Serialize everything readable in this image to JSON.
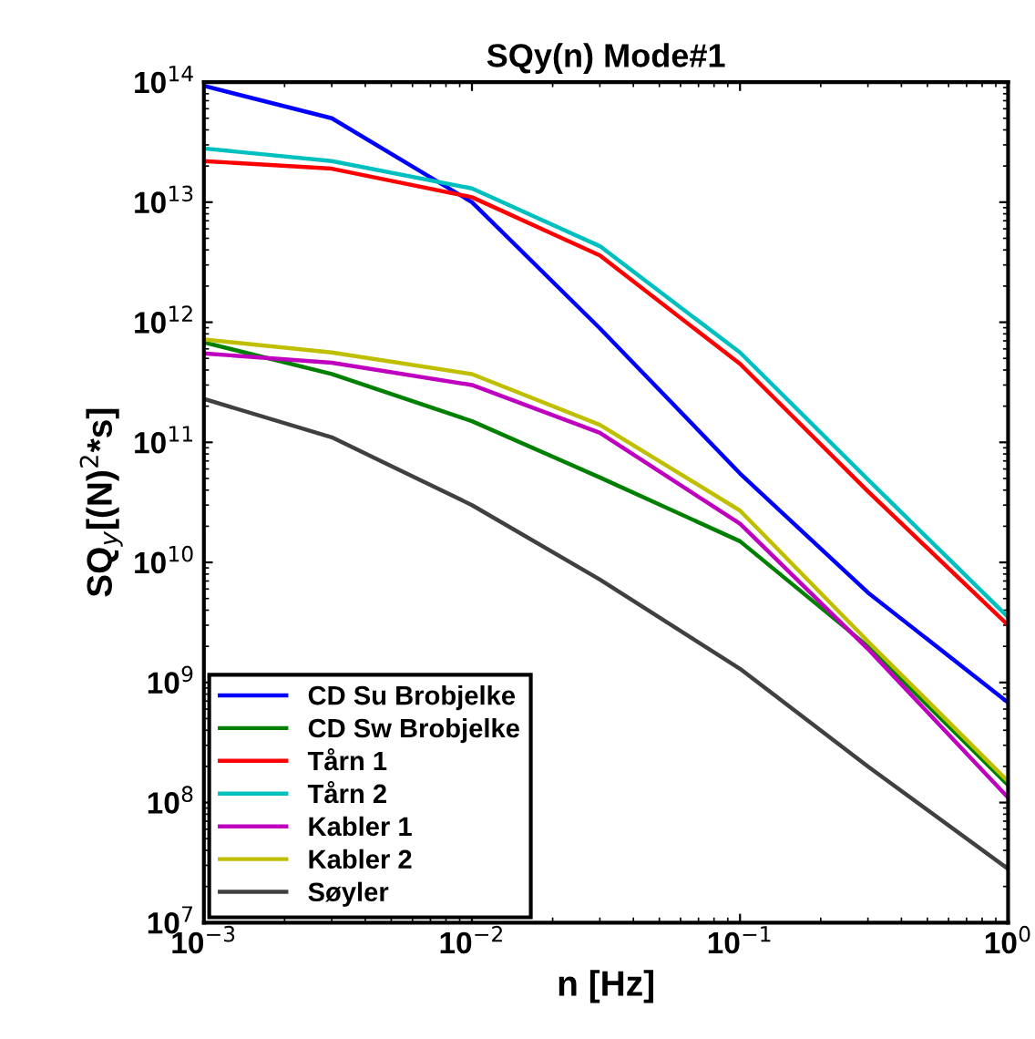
{
  "chart_data": {
    "type": "line",
    "title": "SQy(n) Mode#1",
    "xlabel": "n [Hz]",
    "ylabel": "SQ$_{y}$[(N)$^{2}$*s]",
    "log": "xy",
    "legend": "bottom left",
    "grid": false,
    "x": [
      0.001,
      0.003,
      0.01,
      0.03,
      0.1,
      0.3,
      1
    ],
    "xlim": [
      0.001,
      1
    ],
    "xticks": [
      {
        "value": 0.001,
        "label": "10$^{−3}$"
      },
      {
        "value": 0.01,
        "label": "10$^{−2}$"
      },
      {
        "value": 0.1,
        "label": "10$^{−1}$"
      },
      {
        "value": 1,
        "label": "10$^{0}$"
      }
    ],
    "ylim": [
      10000000.0,
      100000000000000.0
    ],
    "yticks": [
      {
        "value": 10000000.0,
        "label": "10$^{7}$"
      },
      {
        "value": 100000000.0,
        "label": "10$^{8}$"
      },
      {
        "value": 1000000000.0,
        "label": "10$^{9}$"
      },
      {
        "value": 10000000000.0,
        "label": "10$^{10}$"
      },
      {
        "value": 100000000000.0,
        "label": "10$^{11}$"
      },
      {
        "value": 1000000000000.0,
        "label": "10$^{12}$"
      },
      {
        "value": 10000000000000.0,
        "label": "10$^{13}$"
      },
      {
        "value": 100000000000000.0,
        "label": "10$^{14}$"
      }
    ],
    "series": [
      {
        "name": "CD Su Brobjelke",
        "color": "#0000ff",
        "values": [
          93000000000000.0,
          50000000000000.0,
          10000000000000.0,
          890000000000.0,
          55000000000.0,
          5600000000.0,
          680000000.0
        ]
      },
      {
        "name": "CD Sw Brobjelke",
        "color": "#008000",
        "values": [
          680000000000.0,
          370000000000.0,
          150000000000.0,
          51000000000.0,
          15000000000.0,
          2000000000.0,
          140000000.0
        ]
      },
      {
        "name": "Tårn 1",
        "color": "#ff0000",
        "values": [
          22000000000000.0,
          19000000000000.0,
          11000000000000.0,
          3600000000000.0,
          450000000000.0,
          39000000000.0,
          3000000000.0
        ]
      },
      {
        "name": "Tårn 2",
        "color": "#00bfbf",
        "values": [
          28000000000000.0,
          22000000000000.0,
          13000000000000.0,
          4300000000000.0,
          560000000000.0,
          49000000000.0,
          3500000000.0
        ]
      },
      {
        "name": "Kabler 1",
        "color": "#bf00bf",
        "values": [
          550000000000.0,
          460000000000.0,
          300000000000.0,
          120000000000.0,
          21000000000.0,
          1900000000.0,
          110000000.0
        ]
      },
      {
        "name": "Kabler 2",
        "color": "#bfbf00",
        "values": [
          720000000000.0,
          560000000000.0,
          370000000000.0,
          140000000000.0,
          27000000000.0,
          2200000000.0,
          150000000.0
        ]
      },
      {
        "name": "Søyler",
        "color": "#404040",
        "values": [
          230000000000.0,
          110000000000.0,
          30000000000.0,
          7200000000.0,
          1300000000.0,
          200000000.0,
          28000000.0
        ]
      }
    ]
  }
}
